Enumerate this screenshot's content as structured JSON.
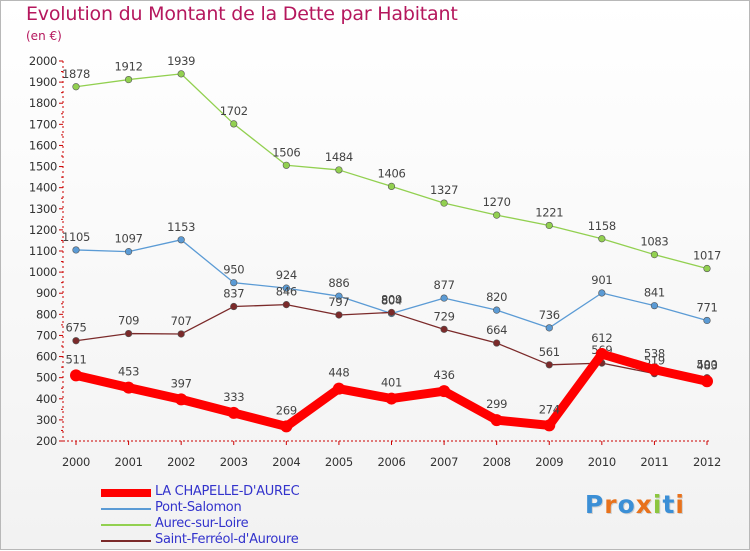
{
  "title": "Evolution du Montant de la Dette par Habitant",
  "unit": "(en €)",
  "brand": "Proxiti",
  "chart_data": {
    "type": "line",
    "x": [
      "2000",
      "2001",
      "2002",
      "2003",
      "2004",
      "2005",
      "2006",
      "2007",
      "2008",
      "2009",
      "2010",
      "2011",
      "2012"
    ],
    "ylim": [
      200,
      2000
    ],
    "yticks": [
      200,
      300,
      400,
      500,
      600,
      700,
      800,
      900,
      1000,
      1100,
      1200,
      1300,
      1400,
      1500,
      1600,
      1700,
      1800,
      1900,
      2000
    ],
    "grid": false,
    "legend_position": "bottom-left",
    "series": [
      {
        "name": "LA CHAPELLE-D'AUREC",
        "color": "#ff0000",
        "values": [
          511,
          453,
          397,
          333,
          269,
          448,
          401,
          436,
          299,
          274,
          612,
          538,
          483
        ]
      },
      {
        "name": "Pont-Salomon",
        "color": "#5b9bd5",
        "values": [
          1105,
          1097,
          1153,
          950,
          924,
          886,
          804,
          877,
          820,
          736,
          901,
          841,
          771
        ]
      },
      {
        "name": "Aurec-sur-Loire",
        "color": "#92d050",
        "values": [
          1878,
          1912,
          1939,
          1702,
          1506,
          1484,
          1406,
          1327,
          1270,
          1221,
          1158,
          1083,
          1017
        ]
      },
      {
        "name": "Saint-Ferréol-d'Auroure",
        "color": "#7b2a2a",
        "values": [
          675,
          709,
          707,
          837,
          846,
          797,
          809,
          729,
          664,
          561,
          569,
          519,
          500
        ]
      }
    ]
  }
}
